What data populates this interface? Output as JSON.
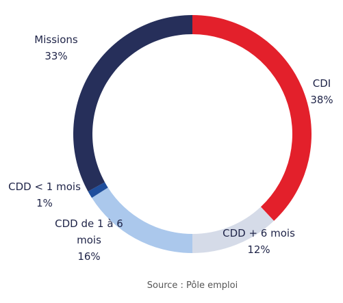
{
  "chart_data": {
    "type": "donut",
    "categories": [
      "CDI",
      "CDD + 6 mois",
      "CDD de 1 à 6 mois",
      "CDD < 1 mois",
      "Missions"
    ],
    "values": [
      38,
      12,
      16,
      1,
      33
    ],
    "value_labels": [
      "38%",
      "12%",
      "16%",
      "1%",
      "33%"
    ],
    "colors": [
      "#e3202b",
      "#d5dbe8",
      "#abc8ec",
      "#1f4e9c",
      "#262f5a"
    ],
    "source": "Source : Pôle emploi"
  }
}
